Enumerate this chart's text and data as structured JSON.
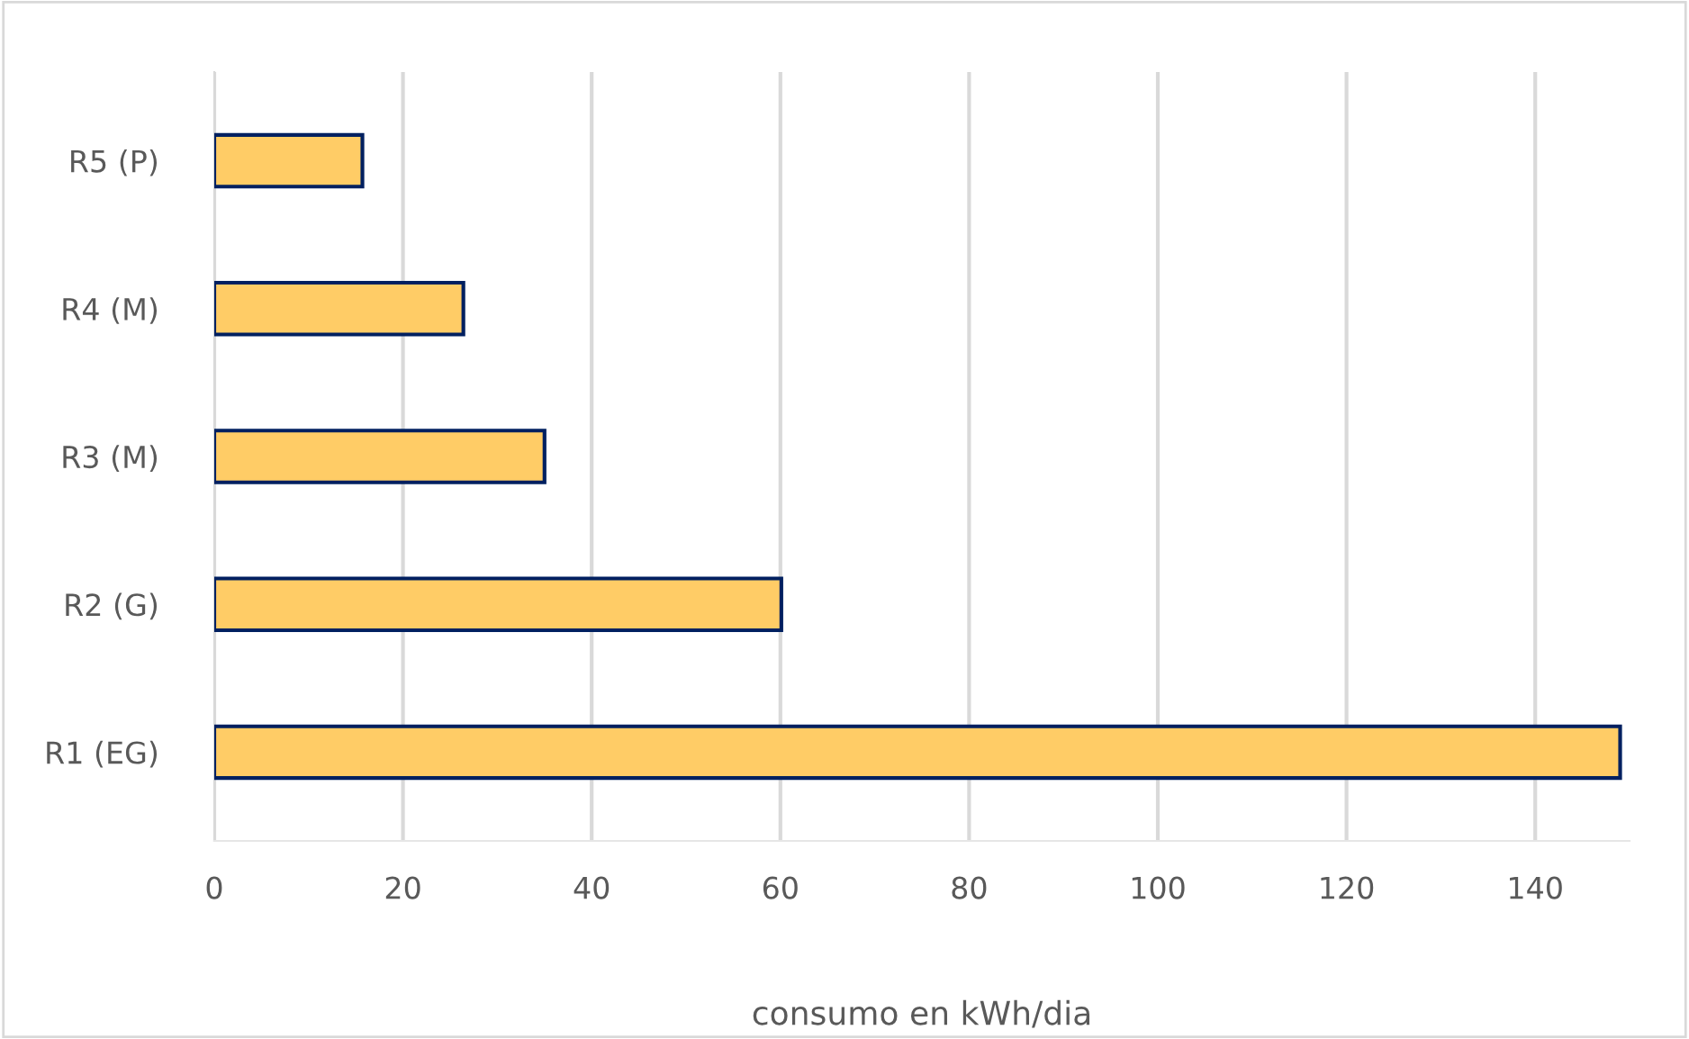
{
  "chart_data": {
    "type": "bar",
    "orientation": "horizontal",
    "xlabel": "consumo en kWh/dia",
    "categories": [
      "R5 (P)",
      "R4 (M)",
      "R3 (M)",
      "R2 (G)",
      "R1 (EG)"
    ],
    "values": [
      15.7,
      26.4,
      35.0,
      60.1,
      149.0
    ],
    "color": "#ffcc66",
    "xlim": [
      0,
      150
    ],
    "xticks": [
      0,
      20,
      40,
      60,
      80,
      100,
      120,
      140
    ],
    "grid": "x",
    "legend": false
  }
}
